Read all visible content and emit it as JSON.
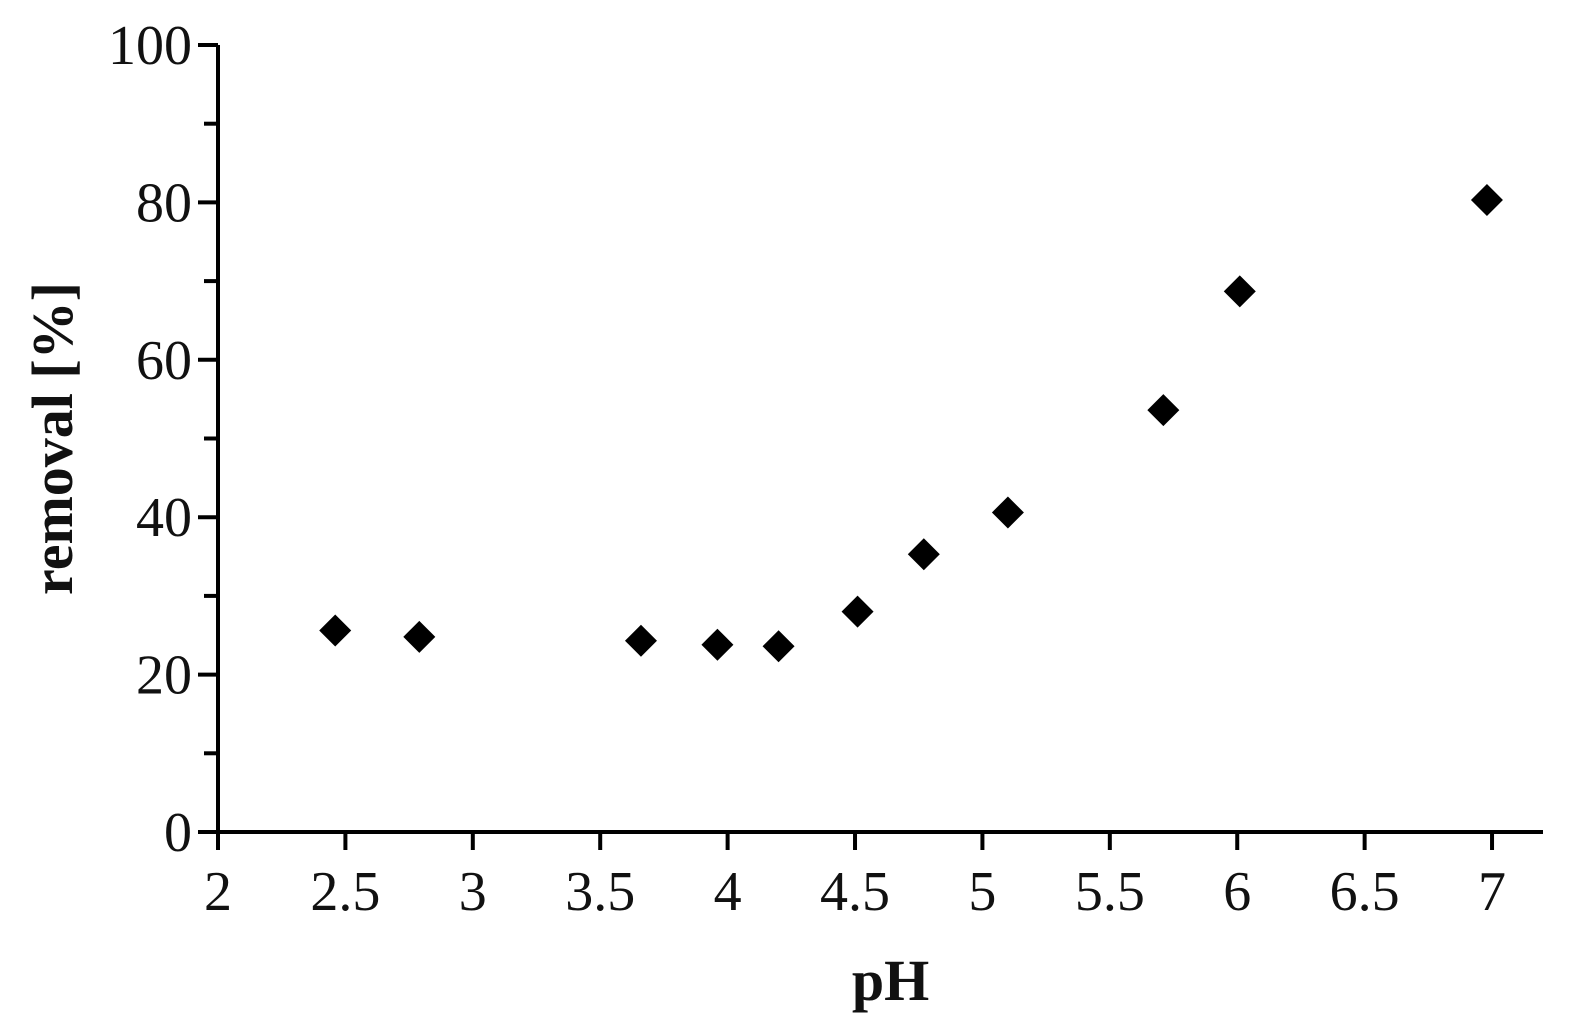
{
  "chart_data": {
    "type": "scatter",
    "title": "",
    "xlabel": "pH",
    "ylabel": "removal [%]",
    "xlim": [
      2,
      7.2
    ],
    "ylim": [
      0,
      100
    ],
    "x_ticks": [
      2,
      2.5,
      3,
      3.5,
      4,
      4.5,
      5,
      5.5,
      6,
      6.5,
      7
    ],
    "x_tick_labels": [
      "2",
      "2.5",
      "3",
      "3.5",
      "4",
      "4.5",
      "5",
      "5.5",
      "6",
      "6.5",
      "7"
    ],
    "y_ticks": [
      0,
      20,
      40,
      60,
      80,
      100
    ],
    "y_tick_labels": [
      "0",
      "20",
      "40",
      "60",
      "80",
      "100"
    ],
    "y_minor_tick_step": 10,
    "grid": false,
    "marker": "diamond",
    "marker_color": "#000000",
    "series": [
      {
        "points": [
          {
            "x": 2.46,
            "y": 25.6
          },
          {
            "x": 2.79,
            "y": 24.8
          },
          {
            "x": 3.66,
            "y": 24.3
          },
          {
            "x": 3.96,
            "y": 23.8
          },
          {
            "x": 4.2,
            "y": 23.6
          },
          {
            "x": 4.51,
            "y": 28.0
          },
          {
            "x": 4.77,
            "y": 35.3
          },
          {
            "x": 5.1,
            "y": 40.6
          },
          {
            "x": 5.71,
            "y": 53.6
          },
          {
            "x": 6.01,
            "y": 68.7
          },
          {
            "x": 6.98,
            "y": 80.3
          }
        ]
      }
    ]
  }
}
